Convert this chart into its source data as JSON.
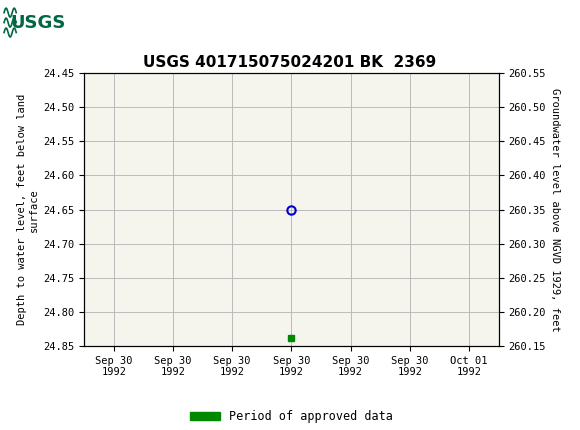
{
  "title": "USGS 401715075024201 BK  2369",
  "header_bg_color": "#006644",
  "fig_bg_color": "#ffffff",
  "plot_bg_color": "#f5f5ee",
  "grid_color": "#bbbbbb",
  "left_ylabel": "Depth to water level, feet below land\nsurface",
  "right_ylabel": "Groundwater level above NGVD 1929, feet",
  "ylim_left_top": 24.45,
  "ylim_left_bottom": 24.85,
  "ylim_right_top": 260.55,
  "ylim_right_bottom": 260.15,
  "yticks_left": [
    24.45,
    24.5,
    24.55,
    24.6,
    24.65,
    24.7,
    24.75,
    24.8,
    24.85
  ],
  "yticks_right": [
    260.55,
    260.5,
    260.45,
    260.4,
    260.35,
    260.3,
    260.25,
    260.2,
    260.15
  ],
  "data_point_x": 3,
  "data_point_y": 24.65,
  "data_point_color": "#0000cc",
  "approved_x": 3,
  "approved_y": 24.838,
  "approved_color": "#008800",
  "x_tick_positions": [
    0,
    1,
    2,
    3,
    4,
    5,
    6
  ],
  "x_tick_labels": [
    "Sep 30\n1992",
    "Sep 30\n1992",
    "Sep 30\n1992",
    "Sep 30\n1992",
    "Sep 30\n1992",
    "Sep 30\n1992",
    "Oct 01\n1992"
  ],
  "xlim": [
    -0.5,
    6.5
  ],
  "legend_label": "Period of approved data",
  "tick_fontsize": 7.5,
  "ylabel_fontsize": 7.5,
  "title_fontsize": 11
}
